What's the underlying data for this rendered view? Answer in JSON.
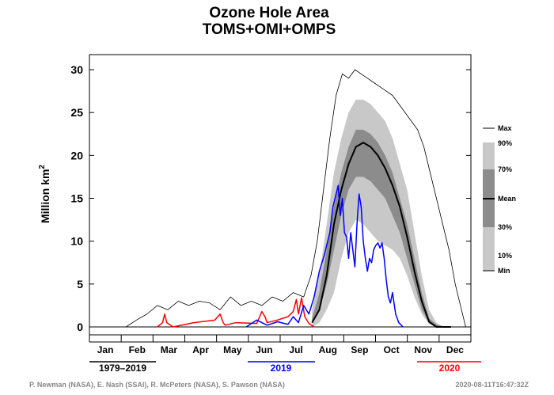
{
  "chart_data": {
    "type": "area",
    "title": "Ozone Hole Area",
    "subtitle": "TOMS+OMI+OMPS",
    "ylabel": "Million km",
    "ylabel_superscript": "2",
    "ylim": [
      0,
      31
    ],
    "yticks": [
      "0",
      "5",
      "10",
      "15",
      "20",
      "25",
      "30"
    ],
    "months": [
      "Jan",
      "Feb",
      "Mar",
      "Apr",
      "May",
      "Jun",
      "Jul",
      "Aug",
      "Sep",
      "Oct",
      "Nov",
      "Dec"
    ],
    "xlim": [
      0,
      365
    ],
    "grid": false,
    "colors": {
      "band_10_90": "#c8c8c8",
      "band_30_70": "#8c8c8c",
      "mean": "#000000",
      "max": "#000000",
      "series_2019": "#0000ff",
      "series_2020": "#ff0000"
    },
    "legend": {
      "placement": "right",
      "labels": [
        "Max",
        "90%",
        "70%",
        "Mean",
        "30%",
        "10%",
        "Min"
      ]
    },
    "climatology_label": "1979–2019",
    "series_labels": {
      "s2019": "2019",
      "s2020": "2020"
    },
    "bands": {
      "day": [
        213,
        220,
        227,
        234,
        241,
        248,
        255,
        262,
        269,
        276,
        283,
        290,
        297,
        304,
        311,
        318,
        325,
        332,
        339,
        346
      ],
      "p10": [
        0,
        0.5,
        2,
        4,
        8,
        11,
        12.5,
        12,
        11,
        10,
        9.5,
        9,
        8,
        6,
        3.5,
        1.5,
        0.3,
        0,
        0,
        0
      ],
      "p30": [
        0.5,
        2,
        5,
        9,
        13,
        16,
        17.5,
        17.5,
        17,
        16,
        15,
        13,
        11,
        8,
        5,
        2,
        0.5,
        0,
        0,
        0
      ],
      "p70": [
        1,
        4,
        9,
        14,
        18,
        21,
        23,
        23,
        22.5,
        21.5,
        20,
        18,
        15,
        12,
        8,
        4,
        1,
        0.3,
        0,
        0
      ],
      "p90": [
        2,
        6,
        12,
        18,
        22,
        25,
        26.5,
        26.5,
        26,
        25,
        24,
        22,
        19,
        16,
        11,
        6,
        2,
        0.5,
        0,
        0
      ]
    },
    "mean": {
      "day": [
        213,
        220,
        227,
        234,
        241,
        248,
        255,
        262,
        269,
        276,
        283,
        290,
        297,
        304,
        311,
        318,
        325,
        332,
        339,
        346
      ],
      "values": [
        0.5,
        2,
        6,
        12,
        16,
        19,
        21,
        21.5,
        21,
        20,
        18.5,
        16.5,
        14,
        10.5,
        6.5,
        3,
        0.6,
        0,
        0,
        0
      ]
    },
    "max": {
      "day": [
        35,
        45,
        55,
        65,
        75,
        85,
        95,
        105,
        115,
        125,
        135,
        145,
        155,
        165,
        175,
        185,
        195,
        205,
        212,
        218,
        224,
        230,
        236,
        242,
        248,
        254,
        260,
        266,
        272,
        278,
        284,
        290,
        296,
        302,
        308,
        314,
        320,
        326,
        332,
        338,
        344,
        350,
        356,
        360
      ],
      "values": [
        0,
        0.8,
        1.5,
        2.5,
        2,
        3,
        2.5,
        3,
        2.8,
        2,
        3.5,
        2.5,
        3,
        2.5,
        3.5,
        3,
        4,
        3.5,
        6,
        10,
        16,
        22,
        27,
        29.5,
        29,
        30,
        29.5,
        29,
        28.5,
        28,
        27.5,
        27,
        26,
        25,
        24,
        23,
        21,
        18,
        15,
        12,
        9,
        5,
        2,
        0
      ]
    },
    "s2019": {
      "day": [
        150,
        160,
        170,
        180,
        190,
        195,
        200,
        205,
        210,
        215,
        220,
        225,
        230,
        233,
        236,
        238,
        240,
        242,
        244,
        246,
        248,
        250,
        252,
        254,
        256,
        258,
        260,
        262,
        264,
        266,
        268,
        270,
        272,
        274,
        276,
        278,
        280,
        282,
        284,
        286,
        288,
        290,
        293,
        296,
        300
      ],
      "values": [
        0,
        0.8,
        0.2,
        0.6,
        0.3,
        1.2,
        0.5,
        2.5,
        1.5,
        3.5,
        6.5,
        8.5,
        11,
        14,
        15.5,
        16.5,
        13,
        15,
        11,
        10.5,
        8,
        11,
        9,
        7,
        12,
        15.5,
        14,
        10,
        8,
        6.5,
        8,
        7.5,
        9,
        9.5,
        9.8,
        9.2,
        9.8,
        8,
        5.5,
        3.5,
        2.8,
        4,
        1.5,
        0.5,
        0
      ]
    },
    "s2020": {
      "day": [
        65,
        70,
        72,
        74,
        80,
        100,
        120,
        125,
        128,
        130,
        140,
        160,
        165,
        168,
        170,
        180,
        190,
        195,
        198,
        200,
        203,
        206,
        210,
        215
      ],
      "values": [
        0,
        0.5,
        1.5,
        0.5,
        0,
        0.5,
        0.8,
        1.5,
        0.5,
        0.2,
        0.5,
        0.4,
        1.8,
        1.2,
        0.5,
        0.8,
        1.2,
        1.8,
        3.2,
        1.5,
        3.4,
        1.2,
        0.4,
        0
      ]
    }
  },
  "footer": {
    "credits": "P. Newman (NASA), E. Nash (SSAI), R. McPeters (NASA), S. Pawson (NASA)",
    "timestamp": "2020-08-11T16:47:32Z"
  }
}
